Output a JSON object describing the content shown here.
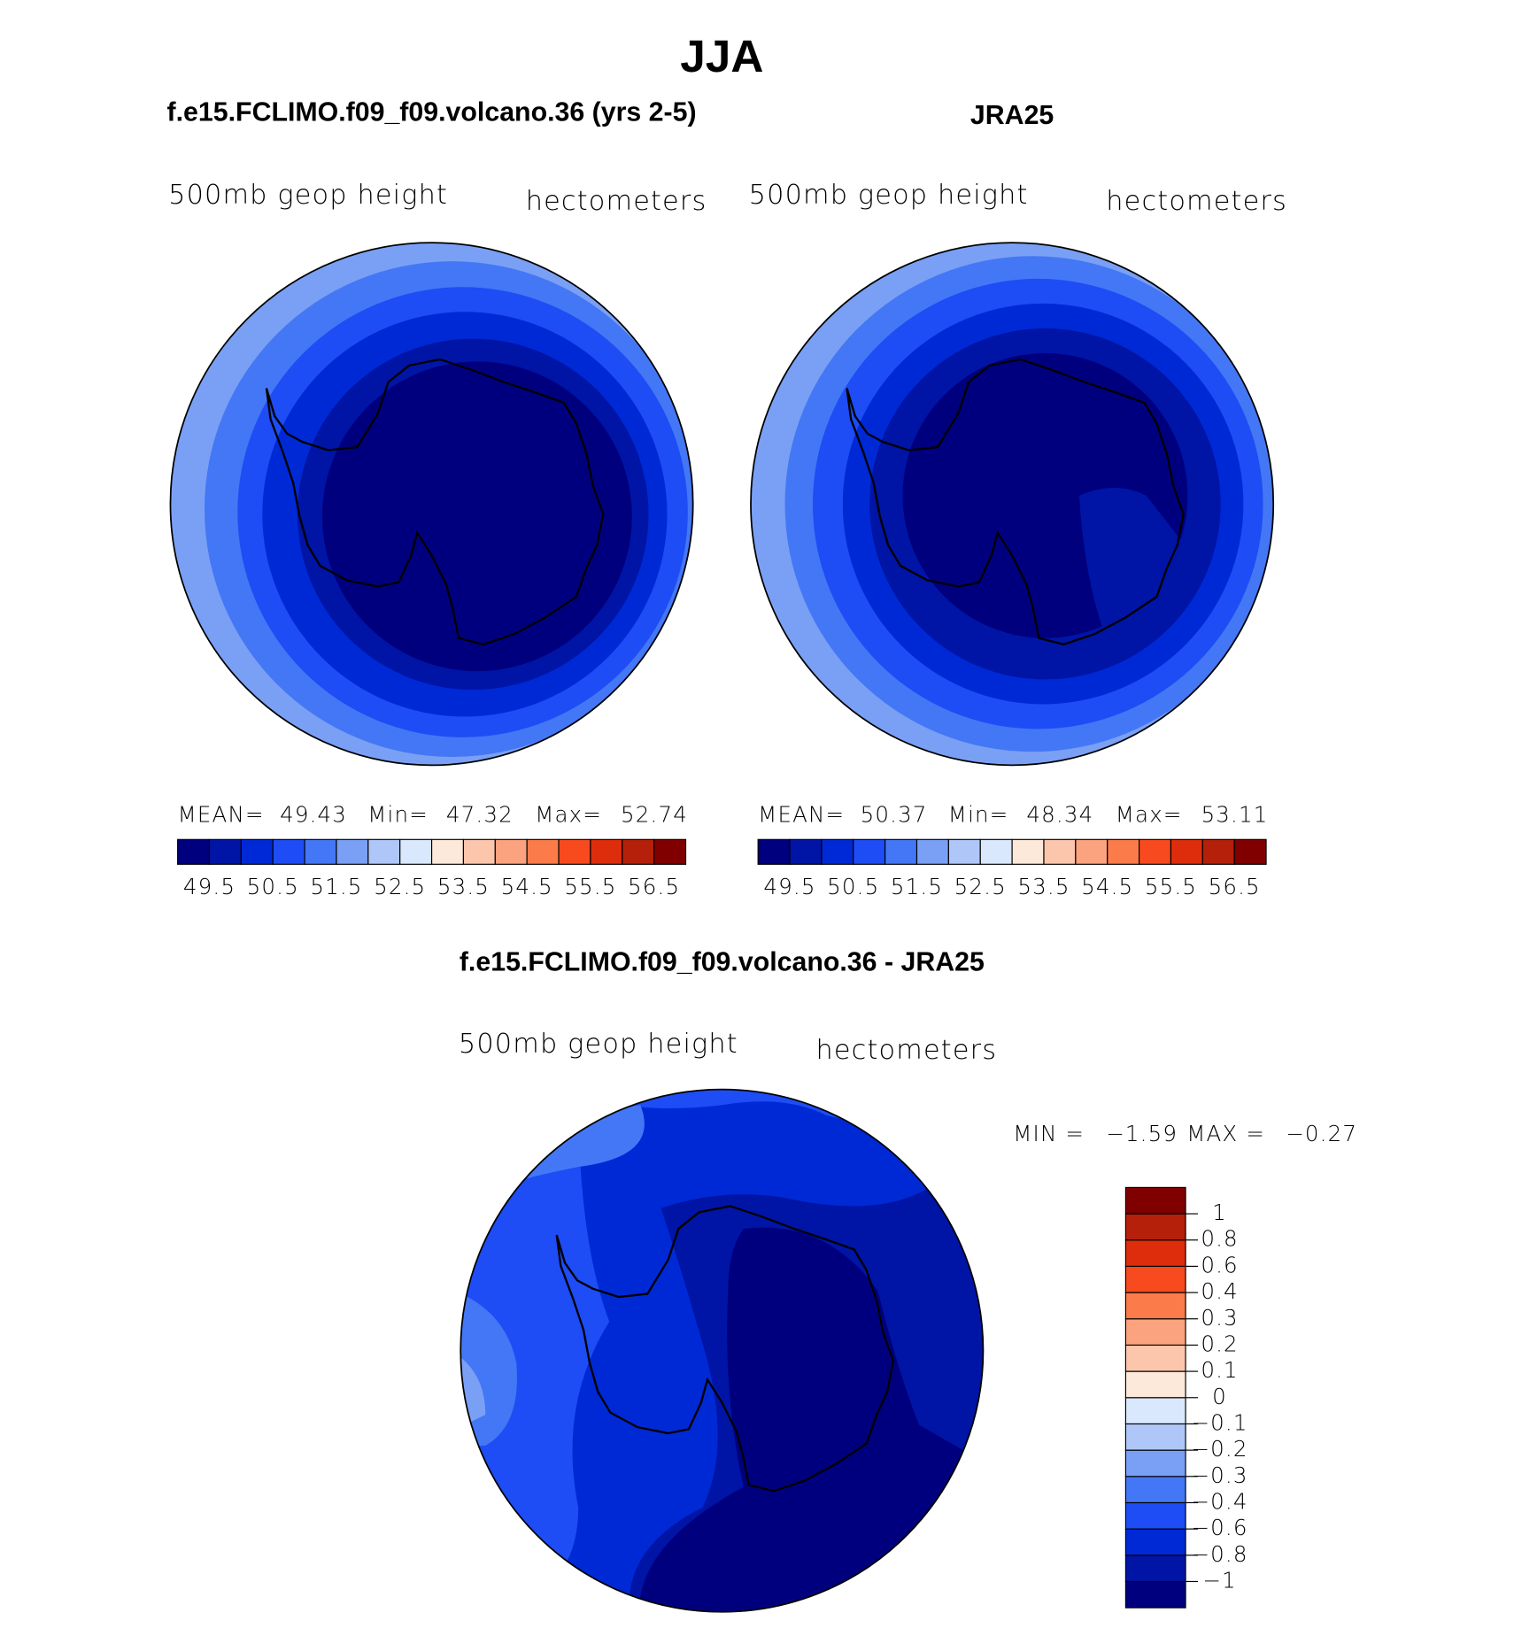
{
  "title": "JJA",
  "panels": [
    {
      "title": "f.e15.FCLIMO.f09_f09.volcano.36 (yrs 2-5)",
      "left_string": "500mb geop height",
      "right_string": "hectometers",
      "stats": [
        {
          "label": "MEAN=",
          "value": 49.43
        },
        {
          "label": "Min=",
          "value": 47.32
        },
        {
          "label": "Max=",
          "value": 52.74
        }
      ],
      "colorbar": {
        "colors": [
          "#00007f",
          "#0015a6",
          "#0029d6",
          "#1e4cf5",
          "#4477f5",
          "#7aa0f5",
          "#afc7f8",
          "#d9e8fc",
          "#fde9d9",
          "#fcc6ad",
          "#fba27e",
          "#fb7b4a",
          "#f74a1e",
          "#de2d0c",
          "#b4200a",
          "#800000"
        ],
        "labels": [
          49.5,
          50.5,
          51.5,
          52.5,
          53.5,
          54.5,
          55.5,
          56.5
        ]
      }
    },
    {
      "title": "JRA25",
      "left_string": "500mb geop height",
      "right_string": "hectometers",
      "stats": [
        {
          "label": "MEAN=",
          "value": 50.37
        },
        {
          "label": "Min=",
          "value": 48.34
        },
        {
          "label": "Max=",
          "value": 53.11
        }
      ],
      "colorbar": {
        "colors": [
          "#00007f",
          "#0015a6",
          "#0029d6",
          "#1e4cf5",
          "#4477f5",
          "#7aa0f5",
          "#afc7f8",
          "#d9e8fc",
          "#fde9d9",
          "#fcc6ad",
          "#fba27e",
          "#fb7b4a",
          "#f74a1e",
          "#de2d0c",
          "#b4200a",
          "#800000"
        ],
        "labels": [
          49.5,
          50.5,
          51.5,
          52.5,
          53.5,
          54.5,
          55.5,
          56.5
        ]
      }
    },
    {
      "title": "f.e15.FCLIMO.f09_f09.volcano.36 - JRA25",
      "left_string": "500mb geop height",
      "right_string": "hectometers",
      "stats": [
        {
          "label": "MIN =",
          "value": "−1.59"
        },
        {
          "label": "MAX =",
          "value": "−0.27"
        }
      ],
      "colorbar": {
        "colors": [
          "#00007f",
          "#0015a6",
          "#0029d6",
          "#1e4cf5",
          "#4477f5",
          "#7aa0f5",
          "#afc7f8",
          "#d9e8fc",
          "#fde9d9",
          "#fcc6ad",
          "#fba27e",
          "#fb7b4a",
          "#f74a1e",
          "#de2d0c",
          "#b4200a",
          "#800000"
        ],
        "labels": [
          1,
          0.8,
          0.6,
          0.4,
          0.3,
          0.2,
          0.1,
          0,
          "−0.1",
          "−0.2",
          "−0.3",
          "−0.4",
          "−0.6",
          "−0.8",
          "−1"
        ]
      }
    }
  ]
}
